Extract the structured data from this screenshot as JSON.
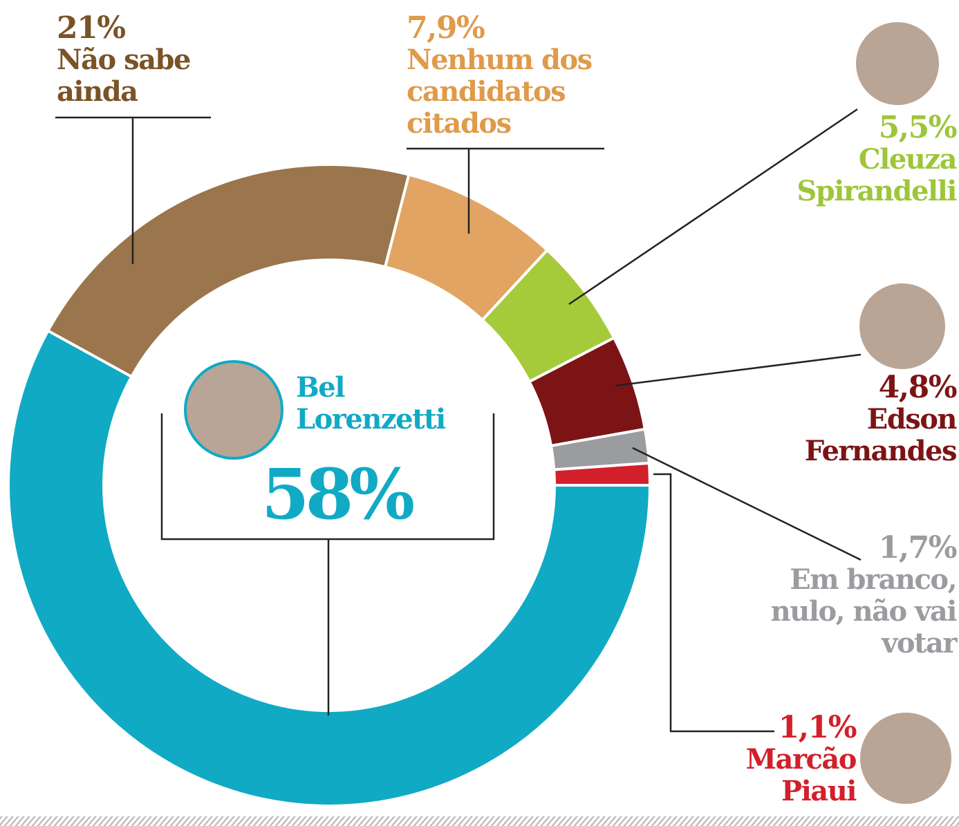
{
  "chart_data": {
    "type": "pie",
    "categories": [
      "Bel Lorenzetti",
      "Não sabe ainda",
      "Nenhum dos candidatos citados",
      "Cleuza Spirandelli",
      "Edson Fernandes",
      "Em branco, nulo, não vai votar",
      "Marcão Piaui"
    ],
    "values": [
      58,
      21,
      7.9,
      5.5,
      4.8,
      1.7,
      1.1
    ],
    "value_labels": [
      "58%",
      "21%",
      "7,9%",
      "5,5%",
      "4,8%",
      "1,7%",
      "1,1%"
    ],
    "colors": [
      "#10aac5",
      "#9b754c",
      "#e1a463",
      "#a6cb3a",
      "#7c1416",
      "#9b9ca0",
      "#d2202b"
    ]
  }
}
